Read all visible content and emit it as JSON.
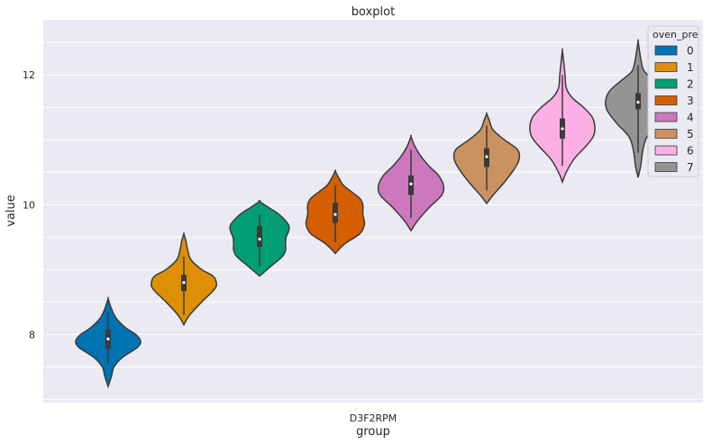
{
  "chart_data": {
    "type": "violin",
    "title": "boxplot",
    "xlabel": "group",
    "ylabel": "value",
    "x_category": "D3F2RPM",
    "ylim": [
      6.95,
      12.85
    ],
    "yticks": [
      8,
      10,
      12
    ],
    "grid": true,
    "legend": {
      "title": "oven_pre",
      "placement": "top-right",
      "entries": [
        "0",
        "1",
        "2",
        "3",
        "4",
        "5",
        "6",
        "7"
      ]
    },
    "colors": [
      "#0173b2",
      "#de8f05",
      "#029e73",
      "#d55e00",
      "#cc78bc",
      "#ca9161",
      "#fbafe4",
      "#949494"
    ],
    "series": [
      {
        "name": "0",
        "min": 7.2,
        "q1": 7.78,
        "median": 7.93,
        "q3": 8.08,
        "max": 8.55,
        "whisker_low": 7.55,
        "whisker_high": 8.35,
        "profile": [
          [
            7.2,
            0.0
          ],
          [
            7.35,
            0.1
          ],
          [
            7.5,
            0.18
          ],
          [
            7.65,
            0.45
          ],
          [
            7.8,
            0.9
          ],
          [
            7.9,
            1.0
          ],
          [
            8.0,
            0.85
          ],
          [
            8.1,
            0.55
          ],
          [
            8.25,
            0.25
          ],
          [
            8.4,
            0.1
          ],
          [
            8.55,
            0.0
          ]
        ]
      },
      {
        "name": "1",
        "min": 8.15,
        "q1": 8.67,
        "median": 8.8,
        "q3": 8.92,
        "max": 9.55,
        "whisker_low": 8.3,
        "whisker_high": 9.2,
        "profile": [
          [
            8.15,
            0.0
          ],
          [
            8.3,
            0.18
          ],
          [
            8.5,
            0.55
          ],
          [
            8.7,
            0.95
          ],
          [
            8.8,
            1.0
          ],
          [
            8.9,
            0.9
          ],
          [
            9.0,
            0.55
          ],
          [
            9.15,
            0.22
          ],
          [
            9.3,
            0.12
          ],
          [
            9.45,
            0.06
          ],
          [
            9.55,
            0.0
          ]
        ]
      },
      {
        "name": "2",
        "min": 8.9,
        "q1": 9.35,
        "median": 9.47,
        "q3": 9.67,
        "max": 10.05,
        "whisker_low": 9.05,
        "whisker_high": 9.85,
        "profile": [
          [
            8.9,
            0.0
          ],
          [
            9.05,
            0.35
          ],
          [
            9.2,
            0.7
          ],
          [
            9.3,
            0.8
          ],
          [
            9.4,
            0.8
          ],
          [
            9.5,
            0.82
          ],
          [
            9.6,
            0.9
          ],
          [
            9.7,
            0.88
          ],
          [
            9.85,
            0.6
          ],
          [
            9.95,
            0.3
          ],
          [
            10.05,
            0.0
          ]
        ]
      },
      {
        "name": "3",
        "min": 9.25,
        "q1": 9.72,
        "median": 9.85,
        "q3": 10.03,
        "max": 10.52,
        "whisker_low": 9.42,
        "whisker_high": 10.3,
        "profile": [
          [
            9.25,
            0.0
          ],
          [
            9.4,
            0.3
          ],
          [
            9.55,
            0.75
          ],
          [
            9.7,
            0.9
          ],
          [
            9.85,
            0.85
          ],
          [
            10.0,
            0.85
          ],
          [
            10.1,
            0.75
          ],
          [
            10.2,
            0.5
          ],
          [
            10.3,
            0.25
          ],
          [
            10.42,
            0.1
          ],
          [
            10.52,
            0.0
          ]
        ]
      },
      {
        "name": "4",
        "min": 9.6,
        "q1": 10.15,
        "median": 10.32,
        "q3": 10.45,
        "max": 11.05,
        "whisker_low": 9.8,
        "whisker_high": 10.85,
        "profile": [
          [
            9.6,
            0.0
          ],
          [
            9.75,
            0.2
          ],
          [
            9.95,
            0.55
          ],
          [
            10.15,
            0.95
          ],
          [
            10.3,
            1.0
          ],
          [
            10.45,
            0.85
          ],
          [
            10.6,
            0.55
          ],
          [
            10.75,
            0.3
          ],
          [
            10.9,
            0.12
          ],
          [
            11.05,
            0.0
          ]
        ]
      },
      {
        "name": "5",
        "min": 10.02,
        "q1": 10.58,
        "median": 10.74,
        "q3": 10.87,
        "max": 11.4,
        "whisker_low": 10.22,
        "whisker_high": 11.22,
        "profile": [
          [
            10.02,
            0.0
          ],
          [
            10.15,
            0.2
          ],
          [
            10.35,
            0.55
          ],
          [
            10.55,
            0.85
          ],
          [
            10.7,
            1.0
          ],
          [
            10.85,
            0.95
          ],
          [
            11.0,
            0.55
          ],
          [
            11.15,
            0.2
          ],
          [
            11.3,
            0.08
          ],
          [
            11.4,
            0.0
          ]
        ]
      },
      {
        "name": "6",
        "min": 10.35,
        "q1": 11.02,
        "median": 11.17,
        "q3": 11.33,
        "max": 12.38,
        "whisker_low": 10.6,
        "whisker_high": 12.0,
        "profile": [
          [
            10.35,
            0.0
          ],
          [
            10.5,
            0.12
          ],
          [
            10.7,
            0.35
          ],
          [
            10.9,
            0.72
          ],
          [
            11.05,
            0.95
          ],
          [
            11.2,
            1.0
          ],
          [
            11.35,
            0.92
          ],
          [
            11.5,
            0.65
          ],
          [
            11.65,
            0.3
          ],
          [
            11.8,
            0.12
          ],
          [
            12.0,
            0.08
          ],
          [
            12.2,
            0.04
          ],
          [
            12.38,
            0.0
          ]
        ]
      },
      {
        "name": "7",
        "min": 10.42,
        "q1": 11.47,
        "median": 11.58,
        "q3": 11.72,
        "max": 12.52,
        "whisker_low": 10.8,
        "whisker_high": 12.15,
        "profile": [
          [
            10.42,
            0.0
          ],
          [
            10.6,
            0.08
          ],
          [
            10.85,
            0.15
          ],
          [
            11.05,
            0.28
          ],
          [
            11.25,
            0.65
          ],
          [
            11.45,
            0.95
          ],
          [
            11.6,
            1.0
          ],
          [
            11.75,
            0.88
          ],
          [
            11.9,
            0.55
          ],
          [
            12.05,
            0.2
          ],
          [
            12.2,
            0.1
          ],
          [
            12.35,
            0.05
          ],
          [
            12.52,
            0.0
          ]
        ]
      }
    ]
  }
}
